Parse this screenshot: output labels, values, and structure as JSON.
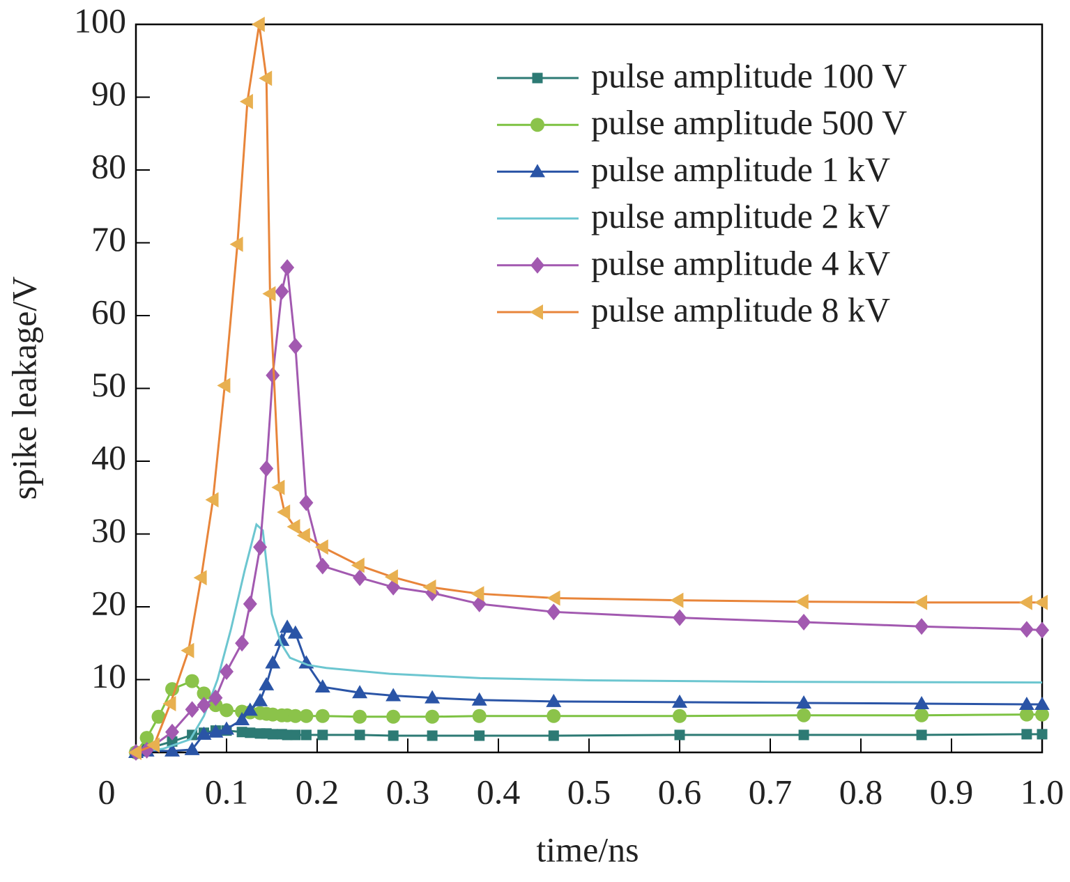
{
  "chart_data": {
    "type": "line",
    "x_label": "time/ns",
    "y_label": "spike leakage/V",
    "xlim": [
      0,
      1
    ],
    "ylim": [
      0,
      100
    ],
    "xticks": [
      0,
      0.1,
      0.2,
      0.3,
      0.4,
      0.5,
      0.6,
      0.7,
      0.8,
      0.9,
      {
        "value": 1,
        "label": "1.0"
      }
    ],
    "yticks": [
      10,
      20,
      30,
      40,
      50,
      60,
      70,
      80,
      90,
      100
    ],
    "legend": "upper right",
    "series": [
      {
        "name": "pulse amplitude 100 V",
        "color": "#2d7a74",
        "marker": "square",
        "x": [
          0,
          0.012,
          0.04,
          0.062,
          0.075,
          0.088,
          0.1,
          0.117,
          0.126,
          0.137,
          0.144,
          0.151,
          0.161,
          0.167,
          0.176,
          0.188,
          0.206,
          0.247,
          0.284,
          0.327,
          0.379,
          0.461,
          0.6,
          0.737,
          0.867,
          0.983,
          1.0
        ],
        "values": [
          0,
          0.5,
          1.5,
          2.4,
          2.7,
          3,
          3,
          2.8,
          2.7,
          2.6,
          2.6,
          2.5,
          2.5,
          2.4,
          2.4,
          2.4,
          2.4,
          2.4,
          2.3,
          2.3,
          2.3,
          2.3,
          2.4,
          2.4,
          2.4,
          2.5,
          2.5
        ]
      },
      {
        "name": "pulse amplitude 500 V",
        "color": "#7dc242",
        "marker": "circle",
        "x": [
          0,
          0.012,
          0.025,
          0.04,
          0.062,
          0.075,
          0.088,
          0.1,
          0.117,
          0.126,
          0.137,
          0.144,
          0.151,
          0.161,
          0.167,
          0.176,
          0.188,
          0.206,
          0.247,
          0.284,
          0.327,
          0.379,
          0.461,
          0.6,
          0.737,
          0.867,
          0.983,
          1.0
        ],
        "values": [
          0,
          2,
          4.9,
          8.7,
          9.8,
          8.1,
          6.5,
          5.8,
          5.6,
          5.5,
          5.4,
          5.3,
          5.2,
          5.1,
          5.1,
          5,
          5,
          5,
          4.9,
          4.9,
          4.9,
          5,
          5,
          5,
          5.1,
          5.1,
          5.2,
          5.2
        ]
      },
      {
        "name": "pulse amplitude 1 kV",
        "color": "#2a54a6",
        "marker": "triangle",
        "x": [
          0,
          0.012,
          0.04,
          0.062,
          0.075,
          0.088,
          0.1,
          0.117,
          0.126,
          0.137,
          0.144,
          0.151,
          0.161,
          0.167,
          0.176,
          0.188,
          0.206,
          0.247,
          0.284,
          0.327,
          0.379,
          0.461,
          0.6,
          0.737,
          0.867,
          0.983,
          1.0
        ],
        "values": [
          0,
          0.2,
          0.2,
          0.4,
          2.5,
          2.8,
          3.2,
          4.5,
          5.8,
          7.1,
          9.3,
          12.3,
          15.4,
          17.2,
          16.4,
          12.3,
          9,
          8.2,
          7.8,
          7.5,
          7.2,
          7,
          6.9,
          6.8,
          6.7,
          6.6,
          6.6
        ]
      },
      {
        "name": "pulse amplitude 2 kV",
        "color": "#6cc6d0",
        "marker": "none",
        "x": [
          0,
          0.03,
          0.06,
          0.075,
          0.09,
          0.105,
          0.12,
          0.133,
          0.14,
          0.145,
          0.15,
          0.16,
          0.17,
          0.19,
          0.21,
          0.28,
          0.38,
          0.5,
          0.7,
          1.0
        ],
        "values": [
          0,
          0.5,
          1.8,
          5,
          10,
          17,
          25,
          31.3,
          30.5,
          25,
          19,
          15,
          13,
          12,
          11.6,
          10.8,
          10.2,
          9.9,
          9.7,
          9.6
        ]
      },
      {
        "name": "pulse amplitude 4 kV",
        "color": "#a259b0",
        "marker": "diamond",
        "x": [
          0,
          0.012,
          0.04,
          0.062,
          0.075,
          0.088,
          0.1,
          0.117,
          0.126,
          0.137,
          0.144,
          0.151,
          0.161,
          0.167,
          0.176,
          0.188,
          0.206,
          0.247,
          0.284,
          0.327,
          0.379,
          0.461,
          0.6,
          0.737,
          0.867,
          0.983,
          1.0
        ],
        "values": [
          0,
          0.3,
          2.8,
          5.9,
          6.5,
          7.5,
          11.1,
          15,
          20.4,
          28.2,
          39,
          51.8,
          63.3,
          66.6,
          55.8,
          34.3,
          25.6,
          24,
          22.7,
          21.9,
          20.4,
          19.3,
          18.5,
          17.9,
          17.3,
          16.9,
          16.8
        ]
      },
      {
        "name": "pulse amplitude 8 kV",
        "color": "#e8853a",
        "marker": "triangle-left",
        "x": [
          0,
          0.02,
          0.038,
          0.058,
          0.072,
          0.085,
          0.098,
          0.112,
          0.123,
          0.136,
          0.144,
          0.148,
          0.158,
          0.164,
          0.175,
          0.186,
          0.206,
          0.246,
          0.283,
          0.325,
          0.378,
          0.462,
          0.598,
          0.736,
          0.867,
          0.983,
          1.0
        ],
        "values": [
          0,
          1,
          6.7,
          14,
          24,
          34.7,
          50.4,
          69.8,
          89.4,
          100,
          92.6,
          63,
          36.4,
          33,
          31,
          29.8,
          28.2,
          25.7,
          24.1,
          22.7,
          21.8,
          21.2,
          20.9,
          20.7,
          20.6,
          20.6,
          20.6
        ]
      }
    ]
  }
}
